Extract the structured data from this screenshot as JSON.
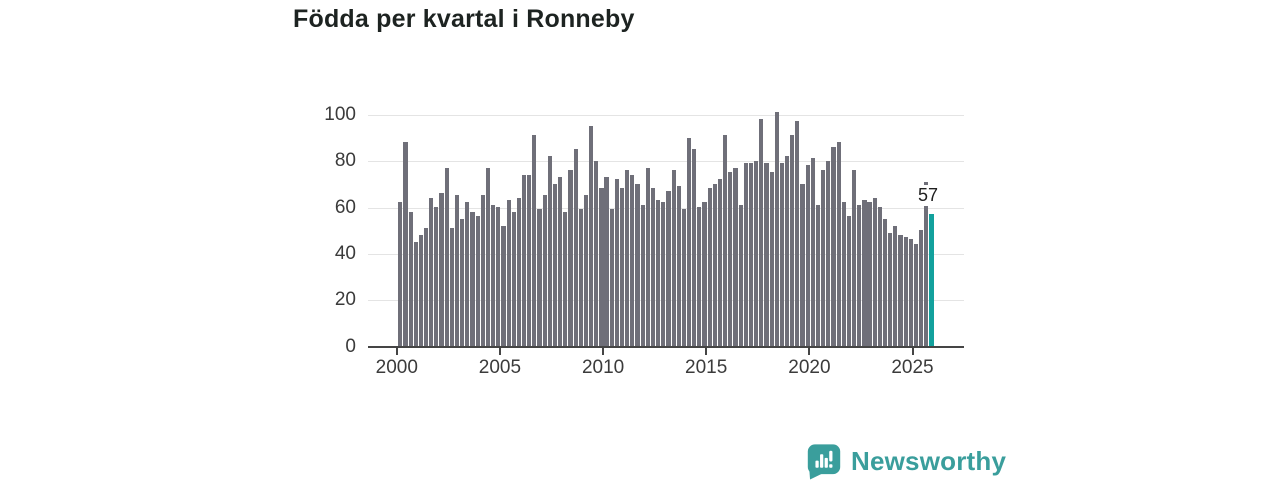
{
  "title": "Födda per kvartal i Ronneby",
  "colors": {
    "bar": "#6F6F79",
    "highlight_bar": "#12A19D",
    "title_text": "#1D2321",
    "axis_text": "#3B3B3B",
    "gridline": "#E4E4E4",
    "axis_line": "#454545",
    "brand_teal": "#3A9E9C"
  },
  "annotation": {
    "last_value_label": "57"
  },
  "branding": {
    "name": "Newsworthy",
    "icon": "newsworthy-speech-bubble-chart-icon"
  },
  "chart_data": {
    "type": "bar",
    "title": "Födda per kvartal i Ronneby",
    "xlabel": "",
    "ylabel": "",
    "ylim": [
      0,
      100
    ],
    "grid": "horizontal",
    "frequency": "quarterly",
    "x_start": "2000-Q1",
    "x_end": "2025-Q4",
    "x_tick_labels": [
      "2000",
      "2005",
      "2010",
      "2015",
      "2020",
      "2025"
    ],
    "y_tick_labels": [
      "100",
      "80",
      "60",
      "40",
      "20",
      "0"
    ],
    "y_tick_values": [
      100,
      80,
      60,
      40,
      20,
      0
    ],
    "highlight_last_bar": true,
    "last_bar_label": "57",
    "values": [
      62,
      88,
      58,
      45,
      48,
      51,
      64,
      60,
      66,
      77,
      51,
      65,
      55,
      62,
      58,
      56,
      65,
      77,
      61,
      60,
      52,
      63,
      58,
      64,
      74,
      74,
      91,
      59,
      65,
      82,
      70,
      73,
      58,
      76,
      85,
      59,
      65,
      95,
      80,
      68,
      73,
      59,
      72,
      68,
      76,
      74,
      70,
      61,
      77,
      68,
      63,
      62,
      67,
      76,
      69,
      59,
      90,
      85,
      60,
      62,
      68,
      70,
      72,
      91,
      75,
      77,
      61,
      79,
      79,
      80,
      98,
      79,
      75,
      101,
      79,
      82,
      91,
      97,
      70,
      78,
      81,
      61,
      76,
      80,
      86,
      88,
      62,
      56,
      76,
      61,
      63,
      62,
      64,
      60,
      55,
      49,
      52,
      48,
      47,
      46,
      44,
      50,
      71,
      57
    ]
  }
}
